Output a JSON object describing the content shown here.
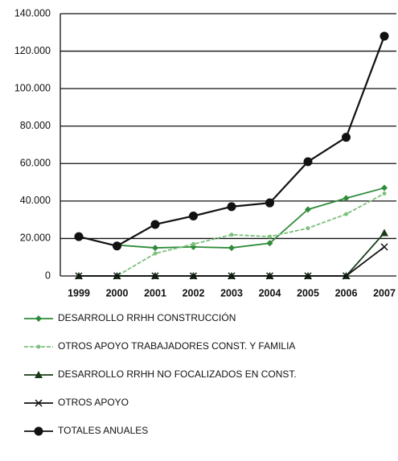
{
  "chart_data": {
    "type": "line",
    "categories": [
      "1999",
      "2000",
      "2001",
      "2002",
      "2003",
      "2004",
      "2005",
      "2006",
      "2007"
    ],
    "series": [
      {
        "name": "DESARROLLO RRHH CONSTRUCCIÓN",
        "color": "#2e8b3a",
        "marker": "diamond",
        "values": [
          null,
          16500,
          15000,
          15500,
          15000,
          17500,
          35500,
          41500,
          47000
        ]
      },
      {
        "name": "OTROS APOYO TRABAJADORES CONST. Y FAMILIA",
        "color": "#7cc07a",
        "marker": "dot",
        "dashed": true,
        "values": [
          0,
          0,
          12000,
          17000,
          22000,
          21000,
          25500,
          33000,
          44000
        ]
      },
      {
        "name": "DESARROLLO RRHH NO FOCALIZADOS EN CONST.",
        "color": "#1a3a1a",
        "marker": "triangle",
        "values": [
          0,
          0,
          0,
          0,
          0,
          0,
          0,
          0,
          23000
        ]
      },
      {
        "name": "OTROS APOYO",
        "color": "#111111",
        "marker": "cross",
        "values": [
          0,
          0,
          0,
          0,
          0,
          0,
          0,
          0,
          15500
        ]
      },
      {
        "name": "TOTALES ANUALES",
        "color": "#111111",
        "marker": "circle",
        "values": [
          21000,
          16000,
          27500,
          32000,
          37000,
          39000,
          61000,
          74000,
          128000
        ]
      }
    ],
    "ylim": [
      0,
      140000
    ],
    "yticks": [
      0,
      {
        "value": 20000,
        "label": "20.000"
      },
      {
        "value": 40000,
        "label": "40.000"
      },
      {
        "value": 60000,
        "label": "60.000"
      },
      {
        "value": 80000,
        "label": "80.000"
      },
      {
        "value": 100000,
        "label": "100.000"
      },
      {
        "value": 120000,
        "label": "120.000"
      },
      {
        "value": 140000,
        "label": "140.000"
      }
    ],
    "grid": true,
    "legend": "bottom"
  }
}
